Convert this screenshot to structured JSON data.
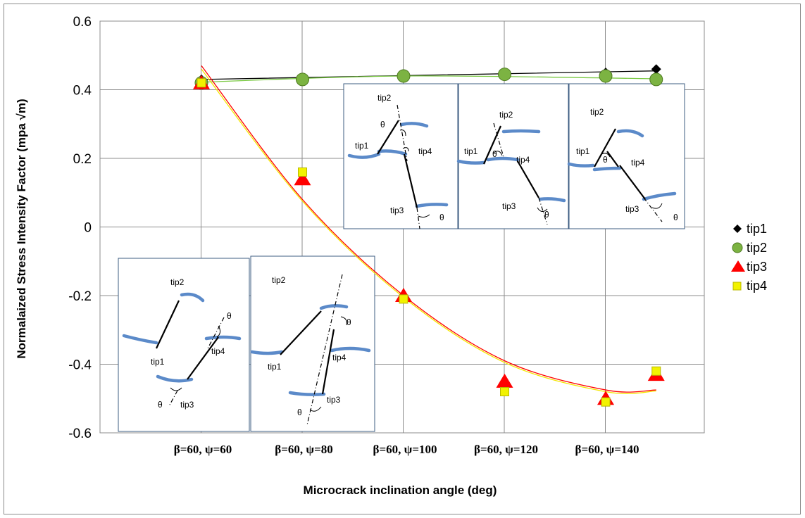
{
  "chart_data": {
    "type": "scatter",
    "title": "",
    "xlabel": "Microcrack inclination angle (deg)",
    "ylabel": "Normalaized Stress Intensity Factor (mpa √m)",
    "ylim": [
      -0.6,
      0.6
    ],
    "yticks": [
      "0.6",
      "0.4",
      "0.2",
      "0",
      "-0.2",
      "-0.4",
      "-0.6"
    ],
    "categories": [
      "β=60, ψ=60",
      "β=60, ψ=80",
      "β=60, ψ=100",
      "β=60, ψ=120",
      "β=60, ψ=140"
    ],
    "grid": true,
    "legend_position": "right",
    "series": [
      {
        "name": "tip1",
        "marker": "diamond",
        "color": "#000000",
        "x": [
          0,
          1,
          2,
          3,
          4,
          4.5
        ],
        "values": [
          0.43,
          0.43,
          0.44,
          0.44,
          0.45,
          0.46
        ]
      },
      {
        "name": "tip2",
        "marker": "circle",
        "color": "#6aa121",
        "x": [
          0,
          1,
          2,
          3,
          4,
          4.5
        ],
        "values": [
          0.42,
          0.43,
          0.44,
          0.445,
          0.44,
          0.43
        ]
      },
      {
        "name": "tip3",
        "marker": "triangle",
        "color": "#ff0000",
        "x": [
          0,
          1,
          2,
          3,
          4,
          4.5
        ],
        "values": [
          0.42,
          0.14,
          -0.2,
          -0.45,
          -0.5,
          -0.43
        ]
      },
      {
        "name": "tip4",
        "marker": "square",
        "color": "#f2f200",
        "x": [
          0,
          1,
          2,
          3,
          4,
          4.5
        ],
        "values": [
          0.42,
          0.16,
          -0.21,
          -0.48,
          -0.51,
          -0.42
        ]
      }
    ],
    "trendlines": [
      {
        "series": "tip1",
        "color": "#000000",
        "points": [
          [
            0,
            0.43
          ],
          [
            4.5,
            0.455
          ]
        ]
      },
      {
        "series": "tip2",
        "color": "#7ac943",
        "points": [
          [
            0,
            0.422
          ],
          [
            2,
            0.44
          ],
          [
            4.5,
            0.432
          ]
        ]
      },
      {
        "series": "tip3",
        "color": "#ff0000",
        "points": [
          [
            0,
            0.47
          ],
          [
            1,
            0.08
          ],
          [
            2,
            -0.2
          ],
          [
            3,
            -0.39
          ],
          [
            4,
            -0.475
          ],
          [
            4.5,
            -0.475
          ]
        ]
      },
      {
        "series": "tip4",
        "color": "#f5e600",
        "points": [
          [
            0,
            0.46
          ],
          [
            1,
            0.075
          ],
          [
            2,
            -0.205
          ],
          [
            3,
            -0.395
          ],
          [
            4,
            -0.48
          ],
          [
            4.5,
            -0.478
          ]
        ]
      }
    ]
  },
  "insets": {
    "labels": {
      "tip1": "tip1",
      "tip2": "tip2",
      "tip3": "tip3",
      "tip4": "tip4",
      "theta": "θ"
    }
  }
}
